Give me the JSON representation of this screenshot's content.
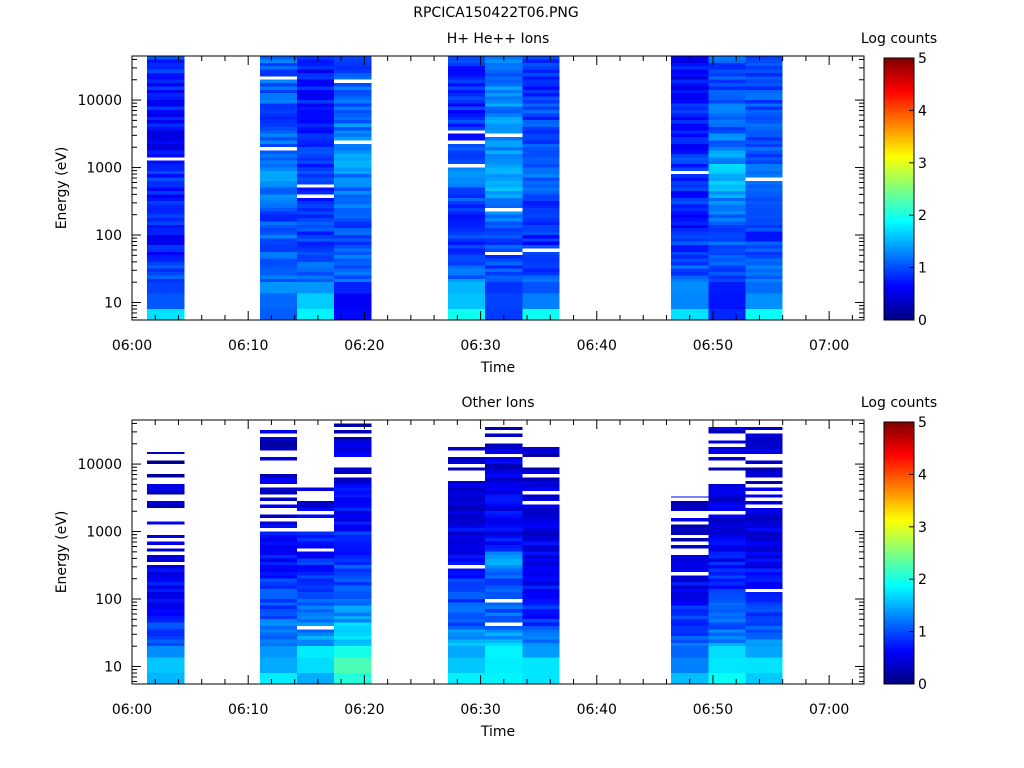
{
  "page_title": "RPCICA150422T06.PNG",
  "colors": {
    "text": "#000000",
    "axis": "#000000",
    "background": "#ffffff",
    "colormap": [
      "#00007f",
      "#0000ff",
      "#007fff",
      "#00ffff",
      "#7fff7f",
      "#ffff00",
      "#ff7f00",
      "#ff0000",
      "#7f0000"
    ]
  },
  "chart_data": [
    {
      "type": "heatmap",
      "title": "H+ He++ Ions",
      "xlabel": "Time",
      "ylabel": "Energy (eV)",
      "x_ticks": [
        "06:00",
        "06:10",
        "06:20",
        "06:30",
        "06:40",
        "06:50",
        "07:00"
      ],
      "x_tick_minutes": [
        0,
        10,
        20,
        30,
        40,
        50,
        60
      ],
      "xlim_minutes": [
        0,
        63
      ],
      "y_scale": "log",
      "ylim": [
        5.5,
        45000
      ],
      "y_ticks": [
        "10",
        "100",
        "1000",
        "10000"
      ],
      "y_tick_values": [
        10,
        100,
        1000,
        10000
      ],
      "colorbar": {
        "label": "Log counts",
        "range": [
          0,
          5
        ],
        "ticks": [
          "0",
          "1",
          "2",
          "3",
          "4",
          "5"
        ]
      },
      "columns": [
        {
          "start_min": 1.3,
          "end_min": 4.5,
          "profile": [
            1.85,
            1.2,
            1.0,
            0.9,
            0.6,
            0.9,
            0.7,
            0.8,
            0.75,
            0.6,
            0.7,
            0.8,
            0.75,
            0.9
          ]
        },
        {
          "start_min": 11.0,
          "end_min": 14.2,
          "profile": [
            0.95,
            1.2,
            1.2,
            1.1,
            1.1,
            1.0,
            1.15,
            1.3,
            1.2,
            1.05,
            1.0,
            1.1,
            1.05,
            1.15
          ]
        },
        {
          "start_min": 14.2,
          "end_min": 17.4,
          "profile": [
            1.85,
            1.5,
            1.25,
            1.0,
            0.9,
            0.85,
            0.8,
            0.9,
            0.85,
            0.8,
            0.8,
            0.75,
            0.7,
            0.7
          ]
        },
        {
          "start_min": 17.4,
          "end_min": 20.6,
          "profile": [
            0.5,
            0.8,
            1.05,
            1.1,
            1.0,
            1.05,
            1.15,
            1.3,
            1.3,
            1.25,
            1.2,
            1.1,
            1.05,
            1.0
          ]
        },
        {
          "start_min": 27.2,
          "end_min": 30.4,
          "profile": [
            1.95,
            1.6,
            1.2,
            1.0,
            0.9,
            0.9,
            1.0,
            1.3,
            1.1,
            0.85,
            0.8,
            0.8,
            0.75,
            0.8
          ]
        },
        {
          "start_min": 30.4,
          "end_min": 33.6,
          "profile": [
            0.8,
            0.85,
            0.9,
            1.0,
            1.05,
            1.15,
            1.35,
            1.45,
            1.35,
            1.3,
            1.3,
            1.25,
            1.2,
            1.25
          ]
        },
        {
          "start_min": 33.6,
          "end_min": 36.8,
          "profile": [
            2.0,
            1.4,
            1.05,
            0.85,
            0.8,
            0.85,
            0.95,
            1.1,
            1.0,
            0.95,
            0.95,
            0.9,
            0.85,
            0.8
          ]
        },
        {
          "start_min": 46.4,
          "end_min": 49.6,
          "profile": [
            1.75,
            1.3,
            1.1,
            0.95,
            0.85,
            0.8,
            0.8,
            0.85,
            0.85,
            0.75,
            0.75,
            0.7,
            0.65,
            0.65
          ]
        },
        {
          "start_min": 49.6,
          "end_min": 52.8,
          "profile": [
            0.75,
            0.6,
            0.9,
            1.0,
            1.0,
            1.05,
            1.3,
            1.65,
            1.35,
            1.15,
            1.1,
            1.05,
            1.0,
            1.0
          ]
        },
        {
          "start_min": 52.8,
          "end_min": 56.0,
          "profile": [
            1.9,
            1.5,
            1.2,
            1.05,
            0.9,
            0.9,
            1.0,
            1.1,
            1.05,
            1.0,
            0.95,
            1.0,
            1.0,
            0.95
          ]
        }
      ]
    },
    {
      "type": "heatmap",
      "title": "Other Ions",
      "xlabel": "Time",
      "ylabel": "Energy (eV)",
      "x_ticks": [
        "06:00",
        "06:10",
        "06:20",
        "06:30",
        "06:40",
        "06:50",
        "07:00"
      ],
      "x_tick_minutes": [
        0,
        10,
        20,
        30,
        40,
        50,
        60
      ],
      "xlim_minutes": [
        0,
        63
      ],
      "y_scale": "log",
      "ylim": [
        5.5,
        45000
      ],
      "y_ticks": [
        "10",
        "100",
        "1000",
        "10000"
      ],
      "y_tick_values": [
        10,
        100,
        1000,
        10000
      ],
      "colorbar": {
        "label": "Log counts",
        "range": [
          0,
          5
        ],
        "ticks": [
          "0",
          "1",
          "2",
          "3",
          "4",
          "5"
        ]
      },
      "columns": [
        {
          "start_min": 1.3,
          "end_min": 4.5,
          "top_energy": 15000,
          "solid_energy": 300,
          "profile": [
            1.85,
            1.45,
            1.1,
            0.9,
            0.7,
            0.6,
            0.5,
            0.45,
            0.4,
            0.35,
            0.3,
            0.3,
            0.3,
            0.3
          ]
        },
        {
          "start_min": 11.0,
          "end_min": 14.2,
          "top_energy": 32000,
          "solid_energy": 900,
          "profile": [
            2.15,
            1.6,
            1.35,
            1.15,
            1.0,
            0.85,
            0.75,
            0.65,
            0.55,
            0.5,
            0.45,
            0.4,
            0.4,
            0.4
          ]
        },
        {
          "start_min": 14.2,
          "end_min": 17.4,
          "top_energy": 4500,
          "solid_energy": 350,
          "profile": [
            1.65,
            1.75,
            1.45,
            1.2,
            1.0,
            0.9,
            0.8,
            0.7,
            0.6,
            0.5,
            0.45,
            0.4,
            0.4,
            0.4
          ]
        },
        {
          "start_min": 17.4,
          "end_min": 20.6,
          "top_energy": 40000,
          "solid_energy": 6000,
          "profile": [
            2.3,
            2.1,
            1.8,
            1.5,
            1.2,
            1.05,
            0.9,
            0.8,
            0.7,
            0.6,
            0.55,
            0.5,
            0.45,
            0.4
          ]
        },
        {
          "start_min": 27.2,
          "end_min": 30.4,
          "top_energy": 22000,
          "solid_energy": 5000,
          "profile": [
            2.1,
            1.75,
            1.4,
            1.1,
            0.95,
            0.8,
            0.7,
            0.6,
            0.55,
            0.5,
            0.45,
            0.4,
            0.4,
            0.4
          ]
        },
        {
          "start_min": 30.4,
          "end_min": 33.6,
          "top_energy": 40000,
          "solid_energy": 13000,
          "profile": [
            2.1,
            1.8,
            1.5,
            1.2,
            1.0,
            0.9,
            1.35,
            0.7,
            0.6,
            0.55,
            0.5,
            0.45,
            0.4,
            0.4
          ]
        },
        {
          "start_min": 33.6,
          "end_min": 36.8,
          "top_energy": 20000,
          "solid_energy": 2500,
          "profile": [
            2.05,
            1.6,
            1.15,
            0.9,
            0.75,
            0.6,
            0.55,
            0.5,
            0.45,
            0.4,
            0.4,
            0.35,
            0.35,
            0.35
          ]
        },
        {
          "start_min": 46.4,
          "end_min": 49.6,
          "top_energy": 3300,
          "solid_energy": 200,
          "profile": [
            1.85,
            1.4,
            1.1,
            0.9,
            0.75,
            0.6,
            0.5,
            0.45,
            0.4,
            0.35,
            0.3,
            0.3,
            0.3,
            0.3
          ]
        },
        {
          "start_min": 49.6,
          "end_min": 52.8,
          "top_energy": 40000,
          "solid_energy": 5000,
          "profile": [
            2.2,
            1.75,
            1.35,
            1.1,
            0.95,
            0.8,
            0.7,
            0.6,
            0.55,
            0.5,
            0.45,
            0.4,
            0.4,
            0.4
          ]
        },
        {
          "start_min": 52.8,
          "end_min": 56.0,
          "top_energy": 38000,
          "solid_energy": 3000,
          "profile": [
            1.85,
            1.6,
            1.25,
            1.0,
            0.85,
            0.7,
            0.6,
            0.5,
            0.45,
            0.4,
            0.35,
            0.35,
            0.35,
            0.35
          ]
        }
      ]
    }
  ]
}
